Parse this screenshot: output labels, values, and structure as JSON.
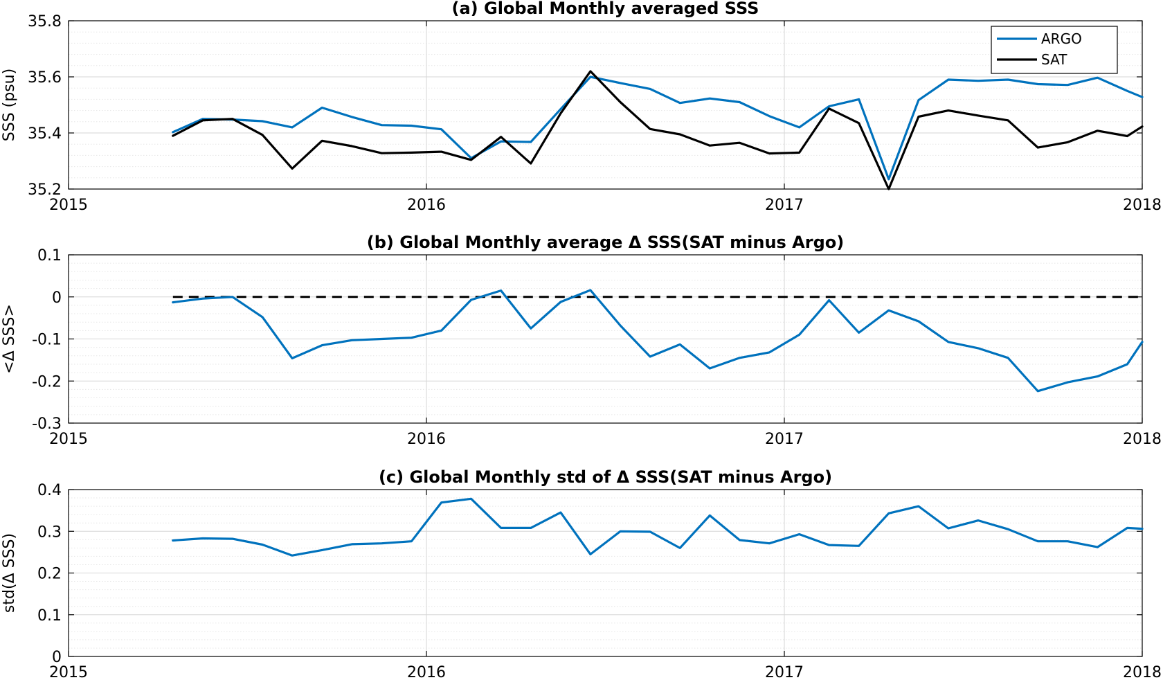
{
  "colors": {
    "argo": "#0072BD",
    "sat": "#000000",
    "delta": "#0072BD",
    "zero_line": "#000000"
  },
  "chart_data": [
    {
      "type": "line",
      "title": "(a) Global Monthly averaged SSS",
      "xlabel": "",
      "ylabel": "SSS (psu)",
      "xlim": [
        2015,
        2018
      ],
      "ylim": [
        35.2,
        35.8
      ],
      "x_ticks": [
        2015,
        2016,
        2017,
        2018
      ],
      "x_tick_labels": [
        "2015",
        "2016",
        "2017",
        "2018"
      ],
      "y_ticks": [
        35.2,
        35.4,
        35.6,
        35.8
      ],
      "y_tick_labels": [
        "35.2",
        "35.4",
        "35.6",
        "35.8"
      ],
      "grid": "on",
      "legend": {
        "placement": "top-right",
        "entries": [
          "ARGO",
          "SAT"
        ]
      },
      "x": [
        2015.2917,
        2015.375,
        2015.4583,
        2015.5417,
        2015.625,
        2015.7083,
        2015.7917,
        2015.875,
        2015.9583,
        2016.0417,
        2016.125,
        2016.2083,
        2016.2917,
        2016.375,
        2016.4583,
        2016.5417,
        2016.625,
        2016.7083,
        2016.7917,
        2016.875,
        2016.9583,
        2017.0417,
        2017.125,
        2017.2083,
        2017.2917,
        2017.375,
        2017.4583,
        2017.5417,
        2017.625,
        2017.7083,
        2017.7917,
        2017.875,
        2017.9583,
        2018.0
      ],
      "series": [
        {
          "name": "ARGO",
          "values": [
            35.403,
            35.45,
            35.448,
            35.442,
            35.42,
            35.49,
            35.457,
            35.428,
            35.426,
            35.413,
            35.31,
            35.37,
            35.368,
            35.485,
            35.6,
            35.578,
            35.557,
            35.507,
            35.523,
            35.51,
            35.46,
            35.42,
            35.495,
            35.52,
            35.235,
            35.517,
            35.59,
            35.586,
            35.59,
            35.574,
            35.571,
            35.597,
            35.55,
            35.528
          ]
        },
        {
          "name": "SAT",
          "values": [
            35.39,
            35.445,
            35.45,
            35.393,
            35.273,
            35.372,
            35.353,
            35.328,
            35.33,
            35.333,
            35.304,
            35.386,
            35.291,
            35.47,
            35.62,
            35.51,
            35.414,
            35.395,
            35.355,
            35.365,
            35.327,
            35.33,
            35.487,
            35.435,
            35.2,
            35.458,
            35.48,
            35.462,
            35.445,
            35.348,
            35.367,
            35.408,
            35.389,
            35.423
          ]
        }
      ]
    },
    {
      "type": "line",
      "title": "(b) Global Monthly average Δ SSS(SAT minus Argo)",
      "xlabel": "",
      "ylabel": "<Δ SSS>",
      "xlim": [
        2015,
        2018
      ],
      "ylim": [
        -0.3,
        0.1
      ],
      "x_ticks": [
        2015,
        2016,
        2017,
        2018
      ],
      "x_tick_labels": [
        "2015",
        "2016",
        "2017",
        "2018"
      ],
      "y_ticks": [
        -0.3,
        -0.2,
        -0.1,
        0,
        0.1
      ],
      "y_tick_labels": [
        "-0.3",
        "-0.2",
        "-0.1",
        "0",
        "0.1"
      ],
      "grid": "on",
      "reference_line": {
        "y": 0,
        "style": "dashed",
        "x_range": [
          2015.2917,
          2018.0
        ]
      },
      "x": [
        2015.2917,
        2015.375,
        2015.4583,
        2015.5417,
        2015.625,
        2015.7083,
        2015.7917,
        2015.875,
        2015.9583,
        2016.0417,
        2016.125,
        2016.2083,
        2016.2917,
        2016.375,
        2016.4583,
        2016.5417,
        2016.625,
        2016.7083,
        2016.7917,
        2016.875,
        2016.9583,
        2017.0417,
        2017.125,
        2017.2083,
        2017.2917,
        2017.375,
        2017.4583,
        2017.5417,
        2017.625,
        2017.7083,
        2017.7917,
        2017.875,
        2017.9583,
        2018.0
      ],
      "series": [
        {
          "values": [
            -0.013,
            -0.004,
            0.0,
            -0.048,
            -0.146,
            -0.115,
            -0.103,
            -0.1,
            -0.097,
            -0.08,
            -0.007,
            0.015,
            -0.075,
            -0.012,
            0.016,
            -0.068,
            -0.142,
            -0.113,
            -0.17,
            -0.145,
            -0.132,
            -0.09,
            -0.008,
            -0.085,
            -0.032,
            -0.058,
            -0.107,
            -0.122,
            -0.145,
            -0.224,
            -0.203,
            -0.189,
            -0.16,
            -0.107
          ]
        }
      ]
    },
    {
      "type": "line",
      "title": "(c) Global Monthly std of Δ SSS(SAT minus Argo)",
      "xlabel": "",
      "ylabel": "std(Δ SSS)",
      "xlim": [
        2015,
        2018
      ],
      "ylim": [
        0,
        0.4
      ],
      "x_ticks": [
        2015,
        2016,
        2017,
        2018
      ],
      "x_tick_labels": [
        "2015",
        "2016",
        "2017",
        "2018"
      ],
      "y_ticks": [
        0,
        0.1,
        0.2,
        0.3,
        0.4
      ],
      "y_tick_labels": [
        "0",
        "0.1",
        "0.2",
        "0.3",
        "0.4"
      ],
      "grid": "on",
      "x": [
        2015.2917,
        2015.375,
        2015.4583,
        2015.5417,
        2015.625,
        2015.7083,
        2015.7917,
        2015.875,
        2015.9583,
        2016.0417,
        2016.125,
        2016.2083,
        2016.2917,
        2016.375,
        2016.4583,
        2016.5417,
        2016.625,
        2016.7083,
        2016.7917,
        2016.875,
        2016.9583,
        2017.0417,
        2017.125,
        2017.2083,
        2017.2917,
        2017.375,
        2017.4583,
        2017.5417,
        2017.625,
        2017.7083,
        2017.7917,
        2017.875,
        2017.9583,
        2018.0
      ],
      "series": [
        {
          "values": [
            0.278,
            0.283,
            0.282,
            0.268,
            0.242,
            0.255,
            0.269,
            0.271,
            0.276,
            0.369,
            0.378,
            0.308,
            0.308,
            0.345,
            0.245,
            0.3,
            0.299,
            0.26,
            0.338,
            0.279,
            0.271,
            0.293,
            0.267,
            0.265,
            0.343,
            0.36,
            0.307,
            0.326,
            0.305,
            0.276,
            0.276,
            0.262,
            0.308,
            0.306
          ]
        }
      ]
    }
  ]
}
